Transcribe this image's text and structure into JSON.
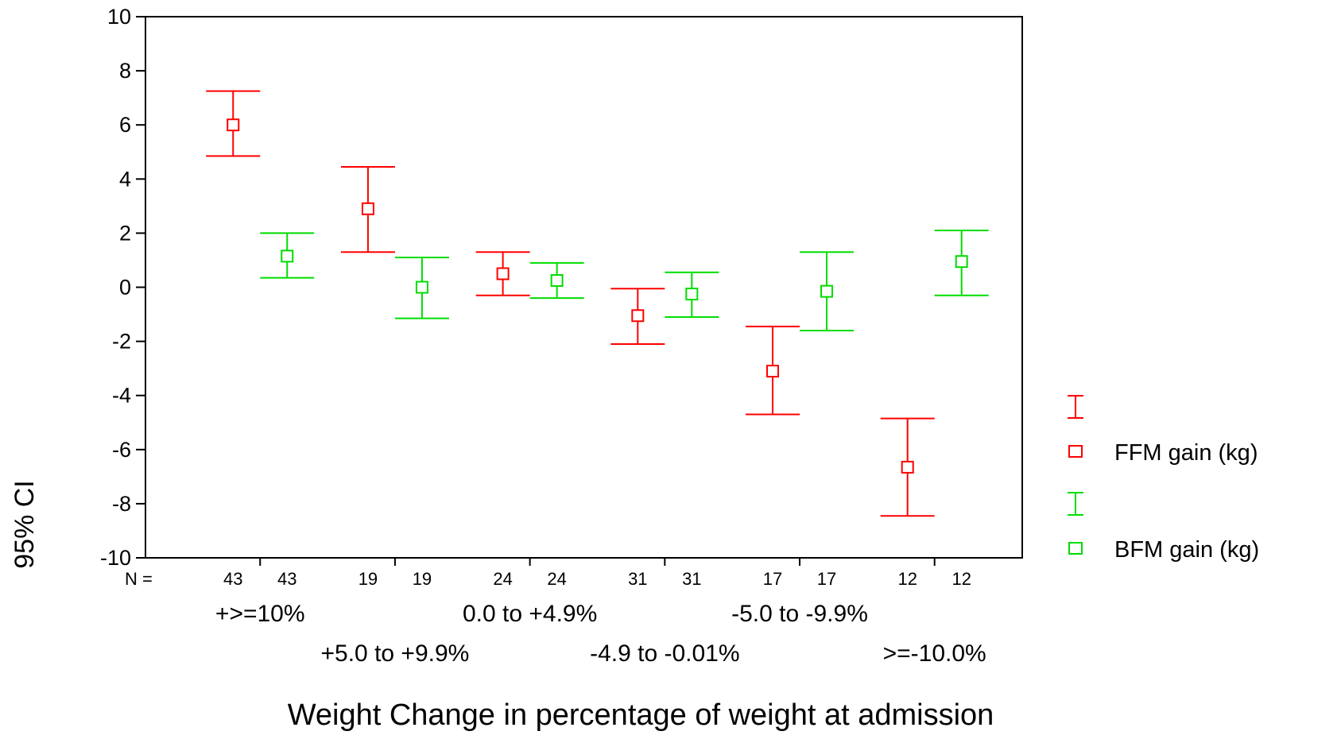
{
  "chart_data": {
    "type": "errorbar",
    "ylabel": "95% CI",
    "xlabel": "Weight Change in percentage of weight at admission",
    "ylim": [
      -10,
      10
    ],
    "yticks": [
      10,
      8,
      6,
      4,
      2,
      0,
      -2,
      -4,
      -6,
      -8,
      -10
    ],
    "n_label": "N =",
    "categories": [
      "+>=10%",
      "+5.0 to +9.9%",
      "0.0 to +4.9%",
      "-4.9 to -0.01%",
      "-5.0 to -9.9%",
      ">=-10.0%"
    ],
    "n": [
      43,
      19,
      24,
      31,
      17,
      12
    ],
    "series": [
      {
        "name": "FFM gain (kg)",
        "color": "#ff0000",
        "mean": [
          6.0,
          2.9,
          0.5,
          -1.05,
          -3.1,
          -6.65
        ],
        "lower": [
          4.85,
          1.3,
          -0.3,
          -2.1,
          -4.7,
          -8.45
        ],
        "upper": [
          7.25,
          4.45,
          1.3,
          -0.05,
          -1.45,
          -4.85
        ]
      },
      {
        "name": "BFM gain (kg)",
        "color": "#00dd00",
        "mean": [
          1.15,
          0.0,
          0.25,
          -0.25,
          -0.15,
          0.95
        ],
        "lower": [
          0.35,
          -1.15,
          -0.4,
          -1.1,
          -1.6,
          -0.3
        ],
        "upper": [
          2.0,
          1.1,
          0.9,
          0.55,
          1.3,
          2.1
        ]
      }
    ],
    "grid": false,
    "legend_position": "right"
  }
}
